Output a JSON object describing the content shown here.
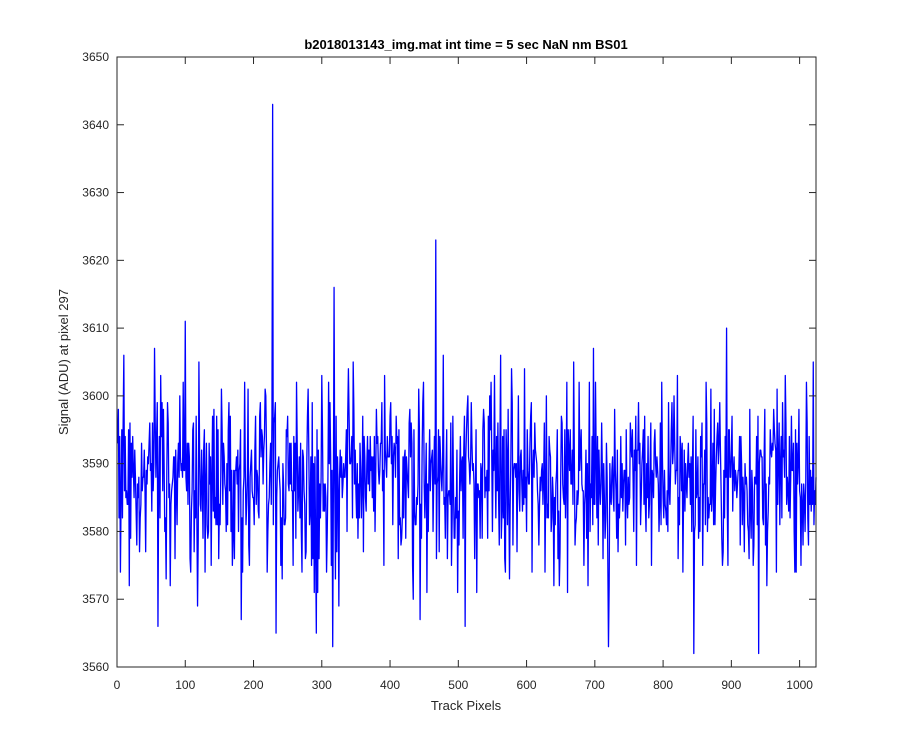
{
  "chart_data": {
    "type": "line",
    "title": "b2018013143_img.mat int time = 5 sec  NaN nm BS01",
    "xlabel": "Track Pixels",
    "ylabel": "Signal (ADU) at pixel 297",
    "xlim": [
      0,
      1024
    ],
    "ylim": [
      3560,
      3650
    ],
    "xticks": [
      0,
      100,
      200,
      300,
      400,
      500,
      600,
      700,
      800,
      900,
      1000
    ],
    "yticks": [
      3560,
      3570,
      3580,
      3590,
      3600,
      3610,
      3620,
      3630,
      3640,
      3650
    ],
    "grid": false,
    "legend": "none",
    "line_color": "#0000ff",
    "series": [
      {
        "x_start": 1,
        "x_step": 1,
        "n_points": 1024,
        "baseline": 3588,
        "noise_sd": 7,
        "landmarks": [
          {
            "x": 1,
            "y": 3593
          },
          {
            "x": 10,
            "y": 3606
          },
          {
            "x": 18,
            "y": 3572
          },
          {
            "x": 55,
            "y": 3607
          },
          {
            "x": 60,
            "y": 3566
          },
          {
            "x": 100,
            "y": 3611
          },
          {
            "x": 228,
            "y": 3643
          },
          {
            "x": 233,
            "y": 3565
          },
          {
            "x": 292,
            "y": 3565
          },
          {
            "x": 316,
            "y": 3563
          },
          {
            "x": 318,
            "y": 3616
          },
          {
            "x": 467,
            "y": 3623
          },
          {
            "x": 510,
            "y": 3566
          },
          {
            "x": 720,
            "y": 3563
          },
          {
            "x": 845,
            "y": 3562
          },
          {
            "x": 893,
            "y": 3610
          },
          {
            "x": 940,
            "y": 3562
          },
          {
            "x": 1020,
            "y": 3605
          },
          {
            "x": 1024,
            "y": 3588
          }
        ]
      }
    ]
  }
}
